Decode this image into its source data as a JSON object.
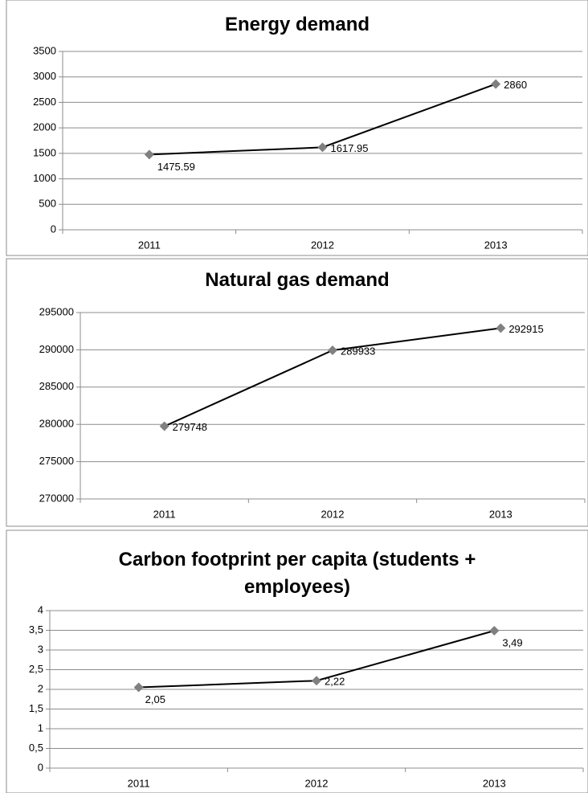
{
  "chart_data": [
    {
      "type": "line",
      "title": "Energy demand",
      "categories": [
        "2011",
        "2012",
        "2013"
      ],
      "values": [
        1475.59,
        1617.95,
        2860
      ],
      "color": "#000000",
      "marker_color": "#808080",
      "ylim": [
        0,
        3500
      ],
      "yticks": [
        0,
        500,
        1000,
        1500,
        2000,
        2500,
        3000,
        3500
      ],
      "grid": true
    },
    {
      "type": "line",
      "title": "Natural gas demand",
      "categories": [
        "2011",
        "2012",
        "2013"
      ],
      "values": [
        279748,
        289933,
        292915
      ],
      "color": "#000000",
      "marker_color": "#808080",
      "ylim": [
        270000,
        295000
      ],
      "yticks": [
        270000,
        275000,
        280000,
        285000,
        290000,
        295000
      ],
      "grid": true
    },
    {
      "type": "line",
      "title": "Carbon footprint per capita (students + employees)",
      "categories": [
        "2011",
        "2012",
        "2013"
      ],
      "values": [
        2.05,
        2.22,
        3.49
      ],
      "value_labels": [
        "2,05",
        "2,22",
        "3,49"
      ],
      "color": "#000000",
      "marker_color": "#808080",
      "ylim": [
        0,
        4
      ],
      "yticks": [
        0,
        {
          "value": 0.5,
          "label": "0,5"
        },
        1,
        {
          "value": 1.5,
          "label": "1,5"
        },
        2,
        {
          "value": 2.5,
          "label": "2,5"
        },
        3,
        {
          "value": 3.5,
          "label": "3,5"
        },
        4
      ],
      "grid": true
    }
  ]
}
